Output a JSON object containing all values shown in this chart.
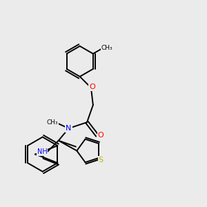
{
  "bg_color": "#ebebeb",
  "atom_colors": {
    "N": "#0000ff",
    "O": "#ff0000",
    "S": "#b8b800",
    "C": "#000000",
    "H": "#000000"
  },
  "bond_color": "#000000",
  "bond_width": 1.4,
  "title": "",
  "xlim": [
    0,
    10
  ],
  "ylim": [
    0,
    10
  ]
}
